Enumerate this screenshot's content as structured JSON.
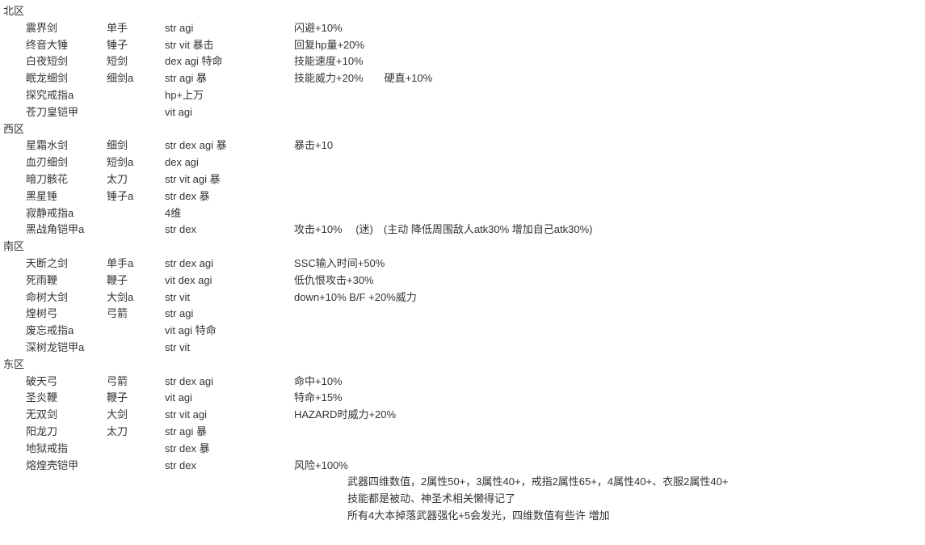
{
  "regions": [
    {
      "header": "北区",
      "items": [
        {
          "name": "震界剑",
          "type": "单手",
          "stats": "str agi",
          "effect": "闪避+10%"
        },
        {
          "name": "终音大锤",
          "type": "锤子",
          "stats": "str  vit 暴击",
          "effect": "回复hp量+20%"
        },
        {
          "name": "白夜短剑",
          "type": "短剑",
          "stats": "dex  agi  特命",
          "effect": "技能速度+10%"
        },
        {
          "name": "眠龙细剑",
          "type": "细剑a",
          "stats": "str agi 暴",
          "effect": "技能威力+20%　　硬直+10%"
        },
        {
          "name": "探究戒指a",
          "type": "",
          "stats": "hp+上万",
          "effect": ""
        },
        {
          "name": "苍刀皇铠甲",
          "type": "",
          "stats": "vit agi",
          "effect": ""
        }
      ]
    },
    {
      "header": "西区",
      "items": [
        {
          "name": "星霜水剑",
          "type": "细剑",
          "stats": "str dex agi 暴",
          "effect": "暴击+10"
        },
        {
          "name": "血刃细剑",
          "type": "短剑a",
          "stats": "dex agi",
          "effect": ""
        },
        {
          "name": "暗刀骸花",
          "type": "太刀",
          "stats": "str vit agi 暴",
          "effect": ""
        },
        {
          "name": "黑星锤",
          "type": "锤子a",
          "stats": "str dex 暴",
          "effect": ""
        },
        {
          "name": "寂静戒指a",
          "type": "",
          "stats": "4维",
          "effect": ""
        },
        {
          "name": "黑战角铠甲a",
          "type": "",
          "stats": "str  dex",
          "effect": "攻击+10%　 (迷)　(主动 降低周围敌人atk30% 增加自己atk30%)"
        }
      ]
    },
    {
      "header": "南区",
      "items": [
        {
          "name": "天断之剑",
          "type": "单手a",
          "stats": "str dex agi",
          "effect": "SSC输入时间+50%"
        },
        {
          "name": "死雨鞭",
          "type": "鞭子",
          "stats": "vit dex agi",
          "effect": "低仇恨攻击+30%"
        },
        {
          "name": "命树大剑",
          "type": "大剑a",
          "stats": "str vit",
          "effect": "down+10% B/F +20%威力"
        },
        {
          "name": "煌树弓",
          "type": "弓箭",
          "stats": "str agi",
          "effect": ""
        },
        {
          "name": "废忘戒指a",
          "type": "",
          "stats": "vit agi  特命",
          "effect": ""
        },
        {
          "name": "深树龙铠甲a",
          "type": "",
          "stats": "str vit",
          "effect": ""
        }
      ]
    },
    {
      "header": "东区",
      "items": [
        {
          "name": "破天弓",
          "type": "弓箭",
          "stats": "str dex agi",
          "effect": "命中+10%"
        },
        {
          "name": "圣炎鞭",
          "type": "鞭子",
          "stats": "vit agi",
          "effect": "特命+15%"
        },
        {
          "name": "无双剑",
          "type": "大剑",
          "stats": "str vit agi",
          "effect": "HAZARD时威力+20%"
        },
        {
          "name": "阳龙刀",
          "type": "太刀",
          "stats": "str agi 暴",
          "effect": ""
        },
        {
          "name": "地狱戒指",
          "type": "",
          "stats": "str dex   暴",
          "effect": ""
        },
        {
          "name": "熔煌壳铠甲",
          "type": "",
          "stats": "str  dex",
          "effect": "风险+100%"
        }
      ]
    }
  ],
  "footer": {
    "lines": [
      "武器四维数值，2属性50+，3属性40+，戒指2属性65+，4属性40+、衣服2属性40+",
      "技能都是被动、神圣术相关懒得记了",
      "所有4大本掉落武器强化+5会发光，四维数值有些许 増加"
    ]
  }
}
